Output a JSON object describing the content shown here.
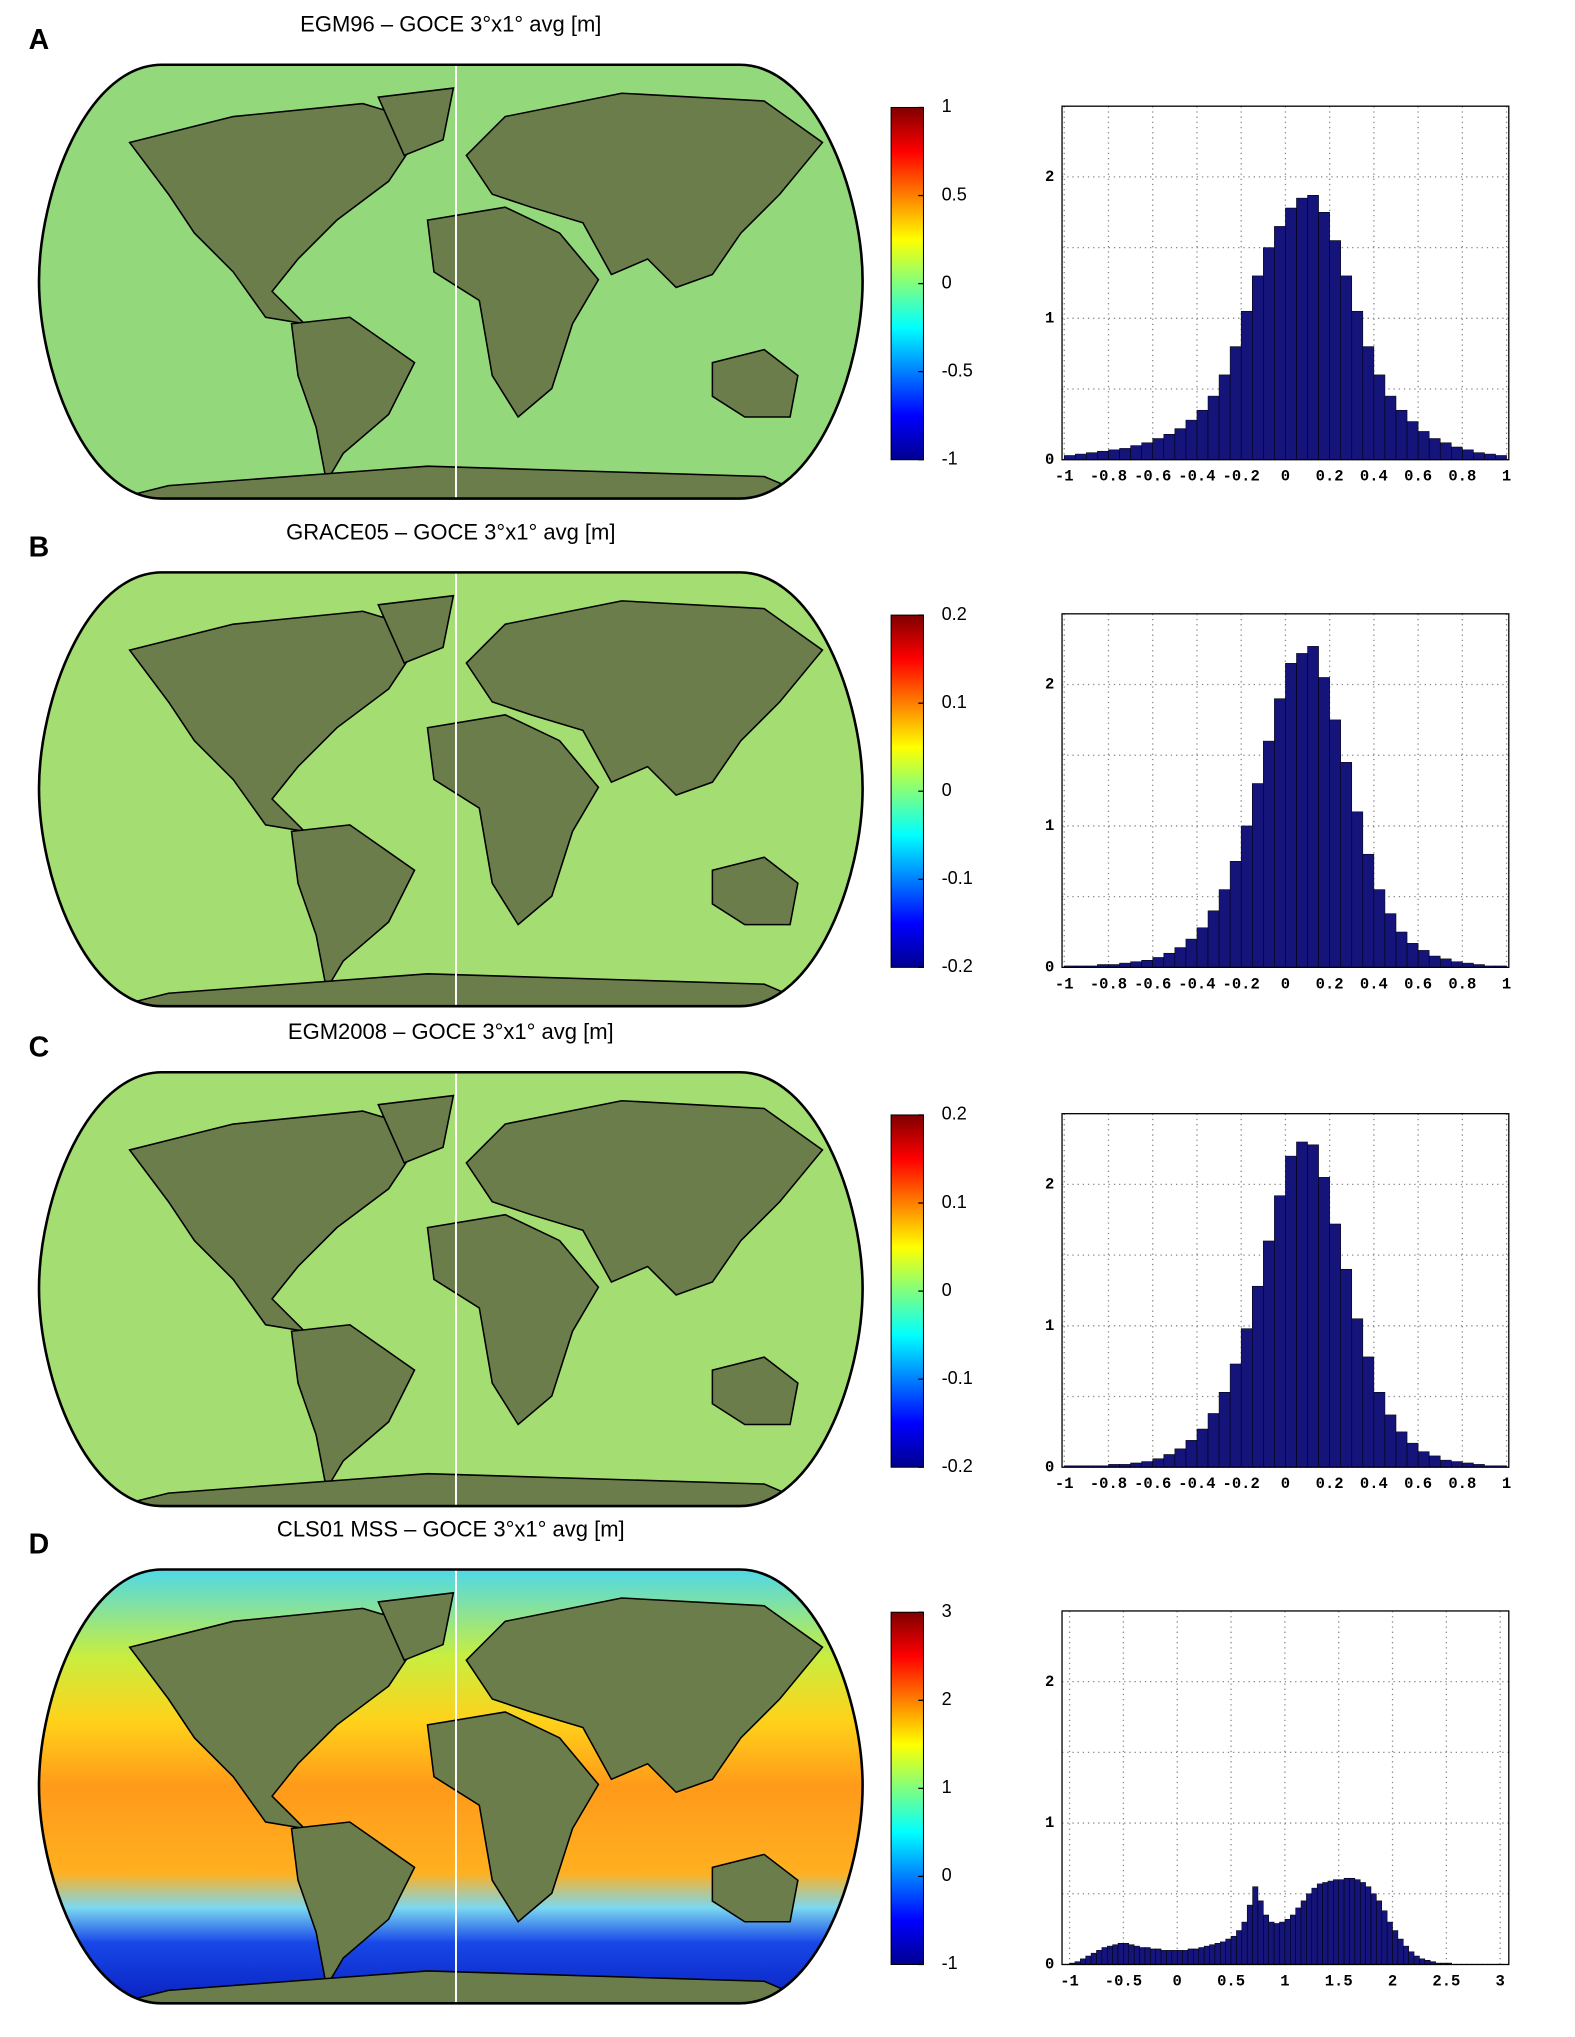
{
  "chart_data": [
    {
      "type": "map",
      "panel": "A",
      "title": "EGM96 – GOCE 3°x1° avg [m]",
      "colormap": "jet",
      "clim": [
        -1,
        1
      ],
      "cticks": [
        -1,
        -0.5,
        0,
        0.5,
        1
      ]
    },
    {
      "type": "histogram",
      "color": "#14147a",
      "xlim": [
        -1.01,
        1.01
      ],
      "ylim": [
        0,
        2.5
      ],
      "xticks": [
        -1,
        -0.8,
        -0.6,
        -0.4,
        -0.2,
        0,
        0.2,
        0.4,
        0.6,
        0.8,
        1
      ],
      "yticks": [
        0,
        1,
        2
      ],
      "yminor": [
        0.5,
        1.5
      ],
      "grid": true,
      "bins": [
        -1,
        -0.95,
        -0.9,
        -0.85,
        -0.8,
        -0.75,
        -0.7,
        -0.65,
        -0.6,
        -0.55,
        -0.5,
        -0.45,
        -0.4,
        -0.35,
        -0.3,
        -0.25,
        -0.2,
        -0.15,
        -0.1,
        -0.05,
        0,
        0.05,
        0.1,
        0.15,
        0.2,
        0.25,
        0.3,
        0.35,
        0.4,
        0.45,
        0.5,
        0.55,
        0.6,
        0.65,
        0.7,
        0.75,
        0.8,
        0.85,
        0.9,
        0.95,
        1
      ],
      "values": [
        0.03,
        0.04,
        0.05,
        0.06,
        0.07,
        0.08,
        0.1,
        0.12,
        0.15,
        0.18,
        0.22,
        0.28,
        0.35,
        0.45,
        0.6,
        0.8,
        1.05,
        1.3,
        1.5,
        1.65,
        1.78,
        1.85,
        1.87,
        1.75,
        1.55,
        1.3,
        1.05,
        0.8,
        0.6,
        0.45,
        0.35,
        0.27,
        0.2,
        0.15,
        0.12,
        0.09,
        0.07,
        0.05,
        0.04,
        0.03
      ]
    },
    {
      "type": "map",
      "panel": "B",
      "title": "GRACE05 – GOCE 3°x1° avg [m]",
      "colormap": "jet",
      "clim": [
        -0.2,
        0.2
      ],
      "cticks": [
        -0.2,
        -0.1,
        0,
        0.1,
        0.2
      ]
    },
    {
      "type": "histogram",
      "color": "#14147a",
      "xlim": [
        -1.01,
        1.01
      ],
      "ylim": [
        0,
        2.5
      ],
      "xticks": [
        -1,
        -0.8,
        -0.6,
        -0.4,
        -0.2,
        0,
        0.2,
        0.4,
        0.6,
        0.8,
        1
      ],
      "yticks": [
        0,
        1,
        2
      ],
      "yminor": [
        0.5,
        1.5
      ],
      "grid": true,
      "bins": [
        -1,
        -0.95,
        -0.9,
        -0.85,
        -0.8,
        -0.75,
        -0.7,
        -0.65,
        -0.6,
        -0.55,
        -0.5,
        -0.45,
        -0.4,
        -0.35,
        -0.3,
        -0.25,
        -0.2,
        -0.15,
        -0.1,
        -0.05,
        0,
        0.05,
        0.1,
        0.15,
        0.2,
        0.25,
        0.3,
        0.35,
        0.4,
        0.45,
        0.5,
        0.55,
        0.6,
        0.65,
        0.7,
        0.75,
        0.8,
        0.85,
        0.9,
        0.95,
        1
      ],
      "values": [
        0.01,
        0.01,
        0.01,
        0.02,
        0.02,
        0.03,
        0.04,
        0.05,
        0.07,
        0.1,
        0.14,
        0.2,
        0.28,
        0.4,
        0.55,
        0.75,
        1.0,
        1.3,
        1.6,
        1.9,
        2.15,
        2.22,
        2.27,
        2.05,
        1.75,
        1.45,
        1.1,
        0.8,
        0.55,
        0.38,
        0.25,
        0.17,
        0.12,
        0.08,
        0.06,
        0.04,
        0.03,
        0.02,
        0.01,
        0.01
      ]
    },
    {
      "type": "map",
      "panel": "C",
      "title": "EGM2008 – GOCE 3°x1° avg [m]",
      "colormap": "jet",
      "clim": [
        -0.2,
        0.2
      ],
      "cticks": [
        -0.2,
        -0.1,
        0,
        0.1,
        0.2
      ]
    },
    {
      "type": "histogram",
      "color": "#14147a",
      "xlim": [
        -1.01,
        1.01
      ],
      "ylim": [
        0,
        2.5
      ],
      "xticks": [
        -1,
        -0.8,
        -0.6,
        -0.4,
        -0.2,
        0,
        0.2,
        0.4,
        0.6,
        0.8,
        1
      ],
      "yticks": [
        0,
        1,
        2
      ],
      "yminor": [
        0.5,
        1.5
      ],
      "grid": true,
      "bins": [
        -1,
        -0.95,
        -0.9,
        -0.85,
        -0.8,
        -0.75,
        -0.7,
        -0.65,
        -0.6,
        -0.55,
        -0.5,
        -0.45,
        -0.4,
        -0.35,
        -0.3,
        -0.25,
        -0.2,
        -0.15,
        -0.1,
        -0.05,
        0,
        0.05,
        0.1,
        0.15,
        0.2,
        0.25,
        0.3,
        0.35,
        0.4,
        0.45,
        0.5,
        0.55,
        0.6,
        0.65,
        0.7,
        0.75,
        0.8,
        0.85,
        0.9,
        0.95,
        1
      ],
      "values": [
        0.01,
        0.01,
        0.01,
        0.01,
        0.02,
        0.02,
        0.03,
        0.04,
        0.06,
        0.09,
        0.13,
        0.19,
        0.27,
        0.38,
        0.53,
        0.73,
        0.98,
        1.28,
        1.6,
        1.92,
        2.2,
        2.3,
        2.28,
        2.05,
        1.72,
        1.4,
        1.05,
        0.78,
        0.53,
        0.37,
        0.25,
        0.17,
        0.11,
        0.08,
        0.05,
        0.04,
        0.03,
        0.02,
        0.01,
        0.01
      ]
    },
    {
      "type": "map",
      "panel": "D",
      "title": "CLS01 MSS – GOCE 3°x1° avg [m]",
      "colormap": "jet",
      "clim": [
        -1,
        3
      ],
      "cticks": [
        -1,
        0,
        1,
        2,
        3
      ]
    },
    {
      "type": "histogram",
      "color": "#14147a",
      "xlim": [
        -1.07,
        3.08
      ],
      "ylim": [
        0,
        2.5
      ],
      "xticks": [
        -1,
        -0.5,
        0,
        0.5,
        1,
        1.5,
        2,
        2.5,
        3
      ],
      "yticks": [
        0,
        1,
        2
      ],
      "yminor": [
        0.5,
        1.5
      ],
      "grid": true,
      "bins": [
        -1,
        -0.95,
        -0.9,
        -0.85,
        -0.8,
        -0.75,
        -0.7,
        -0.65,
        -0.6,
        -0.55,
        -0.5,
        -0.45,
        -0.4,
        -0.35,
        -0.3,
        -0.25,
        -0.2,
        -0.15,
        -0.1,
        -0.05,
        0,
        0.05,
        0.1,
        0.15,
        0.2,
        0.25,
        0.3,
        0.35,
        0.4,
        0.45,
        0.5,
        0.55,
        0.6,
        0.65,
        0.7,
        0.75,
        0.8,
        0.85,
        0.9,
        0.95,
        1,
        1.05,
        1.1,
        1.15,
        1.2,
        1.25,
        1.3,
        1.35,
        1.4,
        1.45,
        1.5,
        1.55,
        1.6,
        1.65,
        1.7,
        1.75,
        1.8,
        1.85,
        1.9,
        1.95,
        2,
        2.05,
        2.1,
        2.15,
        2.2,
        2.25,
        2.3,
        2.35,
        2.4,
        2.45,
        2.5,
        2.55,
        2.6,
        2.65,
        2.7,
        2.75,
        2.8,
        2.85,
        2.9,
        2.95,
        3
      ],
      "values": [
        0.01,
        0.02,
        0.04,
        0.06,
        0.08,
        0.1,
        0.12,
        0.13,
        0.14,
        0.15,
        0.15,
        0.14,
        0.13,
        0.12,
        0.12,
        0.11,
        0.11,
        0.1,
        0.1,
        0.1,
        0.1,
        0.1,
        0.11,
        0.11,
        0.12,
        0.13,
        0.14,
        0.15,
        0.16,
        0.18,
        0.2,
        0.24,
        0.3,
        0.42,
        0.55,
        0.45,
        0.35,
        0.3,
        0.29,
        0.3,
        0.32,
        0.35,
        0.4,
        0.45,
        0.5,
        0.54,
        0.57,
        0.58,
        0.59,
        0.6,
        0.6,
        0.61,
        0.61,
        0.6,
        0.58,
        0.55,
        0.5,
        0.45,
        0.38,
        0.3,
        0.24,
        0.18,
        0.13,
        0.09,
        0.06,
        0.04,
        0.03,
        0.02,
        0.01,
        0.01,
        0.01,
        0,
        0,
        0,
        0,
        0,
        0,
        0,
        0,
        0
      ]
    }
  ]
}
